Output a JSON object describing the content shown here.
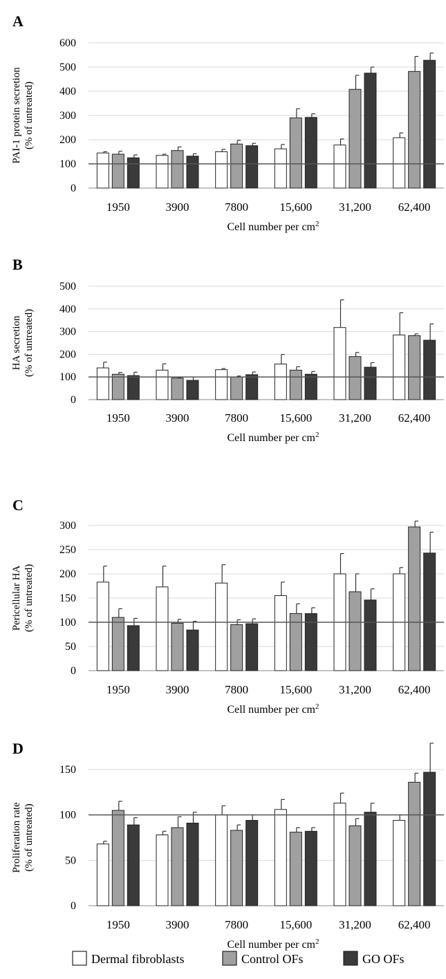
{
  "x_axis_label": "Cell number per cm",
  "x_axis_label_sup": "2",
  "categories": [
    "1950",
    "3900",
    "7800",
    "15,600",
    "31,200",
    "62,400"
  ],
  "colors": {
    "dermal": "#ffffff",
    "control": "#a0a0a0",
    "go": "#3a3a3a",
    "reference_line": "#555555",
    "grid": "#d9d9d9"
  },
  "legend": [
    {
      "name": "Dermal fibroblasts",
      "color_key": "dermal"
    },
    {
      "name": "Control OFs",
      "color_key": "control"
    },
    {
      "name": "GO OFs",
      "color_key": "go"
    }
  ],
  "chart_data": [
    {
      "panel": "A",
      "type": "bar",
      "ylabel_lines": [
        "PAI-1 protein secretion",
        "(% of untreated)"
      ],
      "ylim": [
        0,
        600
      ],
      "yticks": [
        0,
        100,
        200,
        300,
        400,
        500,
        600
      ],
      "reference_line": 100,
      "categories": [
        "1950",
        "3900",
        "7800",
        "15,600",
        "31,200",
        "62,400"
      ],
      "series": [
        {
          "name": "Dermal fibroblasts",
          "values": [
            145,
            135,
            150,
            162,
            178,
            208
          ],
          "errors": [
            5,
            5,
            10,
            18,
            25,
            20
          ]
        },
        {
          "name": "Control OFs",
          "values": [
            140,
            155,
            182,
            290,
            408,
            482
          ],
          "errors": [
            12,
            15,
            15,
            38,
            58,
            62
          ]
        },
        {
          "name": "GO OFs",
          "values": [
            125,
            132,
            175,
            292,
            475,
            528
          ],
          "errors": [
            12,
            10,
            10,
            15,
            25,
            30
          ]
        }
      ]
    },
    {
      "panel": "B",
      "type": "bar",
      "ylabel_lines": [
        "HA secretion",
        "(% of untreated)"
      ],
      "ylim": [
        0,
        500
      ],
      "yticks": [
        0,
        100,
        200,
        300,
        400,
        500
      ],
      "reference_line": 100,
      "categories": [
        "1950",
        "3900",
        "7800",
        "15,600",
        "31,200",
        "62,400"
      ],
      "series": [
        {
          "name": "Dermal fibroblasts",
          "values": [
            140,
            130,
            132,
            157,
            318,
            285
          ],
          "errors": [
            25,
            28,
            5,
            42,
            122,
            98
          ]
        },
        {
          "name": "Control OFs",
          "values": [
            112,
            95,
            100,
            130,
            190,
            282
          ],
          "errors": [
            8,
            3,
            4,
            15,
            18,
            8
          ]
        },
        {
          "name": "GO OFs",
          "values": [
            106,
            85,
            110,
            112,
            143,
            262
          ],
          "errors": [
            15,
            15,
            12,
            12,
            20,
            72
          ]
        }
      ]
    },
    {
      "panel": "C",
      "type": "bar",
      "ylabel_lines": [
        "Pericellular HA",
        "(% of untreated)"
      ],
      "ylim": [
        0,
        300
      ],
      "yticks": [
        0,
        50,
        100,
        150,
        200,
        250,
        300
      ],
      "reference_line": 100,
      "categories": [
        "1950",
        "3900",
        "7800",
        "15,600",
        "31,200",
        "62,400"
      ],
      "series": [
        {
          "name": "Dermal fibroblasts",
          "values": [
            183,
            173,
            181,
            155,
            200,
            200
          ],
          "errors": [
            33,
            43,
            38,
            28,
            42,
            13
          ]
        },
        {
          "name": "Control OFs",
          "values": [
            110,
            98,
            95,
            118,
            163,
            297
          ],
          "errors": [
            18,
            8,
            10,
            20,
            37,
            12
          ]
        },
        {
          "name": "GO OFs",
          "values": [
            93,
            84,
            97,
            118,
            146,
            243
          ],
          "errors": [
            15,
            18,
            10,
            12,
            23,
            43
          ]
        }
      ]
    },
    {
      "panel": "D",
      "type": "bar",
      "ylabel_lines": [
        "Proliferation rate",
        "(% of untreated)"
      ],
      "ylim": [
        0,
        150
      ],
      "yticks": [
        0,
        50,
        100,
        150
      ],
      "reference_line": 100,
      "categories": [
        "1950",
        "3900",
        "7800",
        "15,600",
        "31,200",
        "62,400"
      ],
      "series": [
        {
          "name": "Dermal fibroblasts",
          "values": [
            68,
            78,
            100,
            106,
            113,
            94
          ],
          "errors": [
            3,
            4,
            10,
            11,
            11,
            6
          ]
        },
        {
          "name": "Control OFs",
          "values": [
            105,
            86,
            83,
            81,
            88,
            136
          ],
          "errors": [
            10,
            12,
            6,
            5,
            8,
            10
          ]
        },
        {
          "name": "GO OFs",
          "values": [
            89,
            91,
            94,
            82,
            103,
            147
          ],
          "errors": [
            8,
            12,
            6,
            4,
            10,
            32
          ]
        }
      ]
    }
  ]
}
